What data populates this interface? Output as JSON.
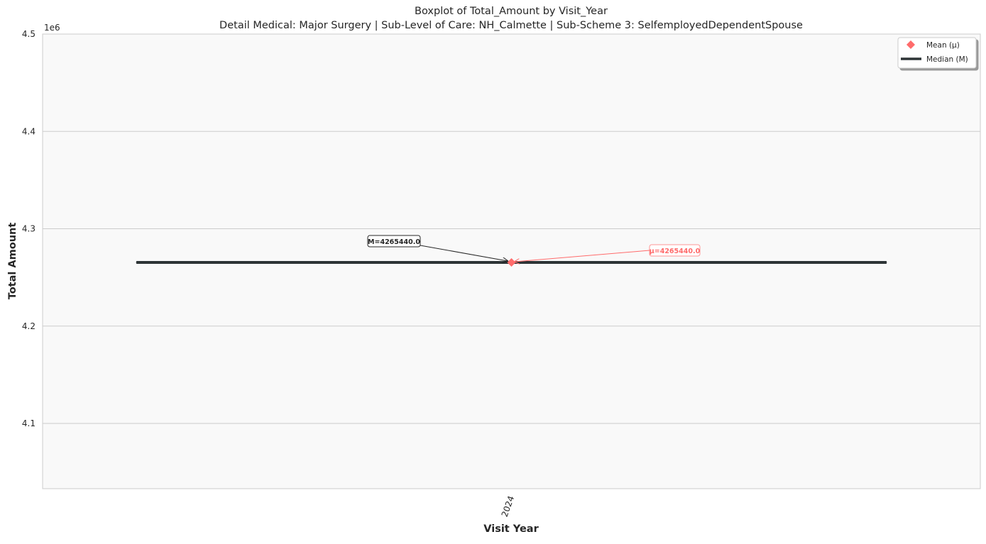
{
  "chart_data": {
    "type": "box",
    "title": "Boxplot of Total_Amount by Visit_Year",
    "subtitle": "Detail Medical: Major Surgery | Sub-Level of Care: NH_Calmette | Sub-Scheme 3: SelfemployedDependentSpouse",
    "xlabel": "Visit Year",
    "ylabel": "Total Amount",
    "y_offset_label": "1e6",
    "categories": [
      "2024"
    ],
    "ylim": [
      4.033,
      4.5
    ],
    "y_ticks": [
      4.1,
      4.2,
      4.3,
      4.4,
      4.5
    ],
    "y_tick_labels": [
      "4.1",
      "4.2",
      "4.3",
      "4.4",
      "4.5"
    ],
    "grid": true,
    "legend_position": "top-right",
    "series": [
      {
        "category": "2024",
        "median": 4.26544,
        "mean": 4.26544,
        "q1": 4.26544,
        "q3": 4.26544,
        "whisker_low": 4.26544,
        "whisker_high": 4.26544
      }
    ],
    "annotations": {
      "median_label": "M=4265440.0",
      "mean_label": "μ=4265440.0"
    },
    "legend": {
      "mean_label": "Mean (μ)",
      "median_label": "Median (M)"
    },
    "colors": {
      "median_line": "#2d3436",
      "mean_marker": "#ff6b6b",
      "plot_background": "#f9f9f9",
      "grid": "#cccccc",
      "text": "#262626"
    }
  }
}
